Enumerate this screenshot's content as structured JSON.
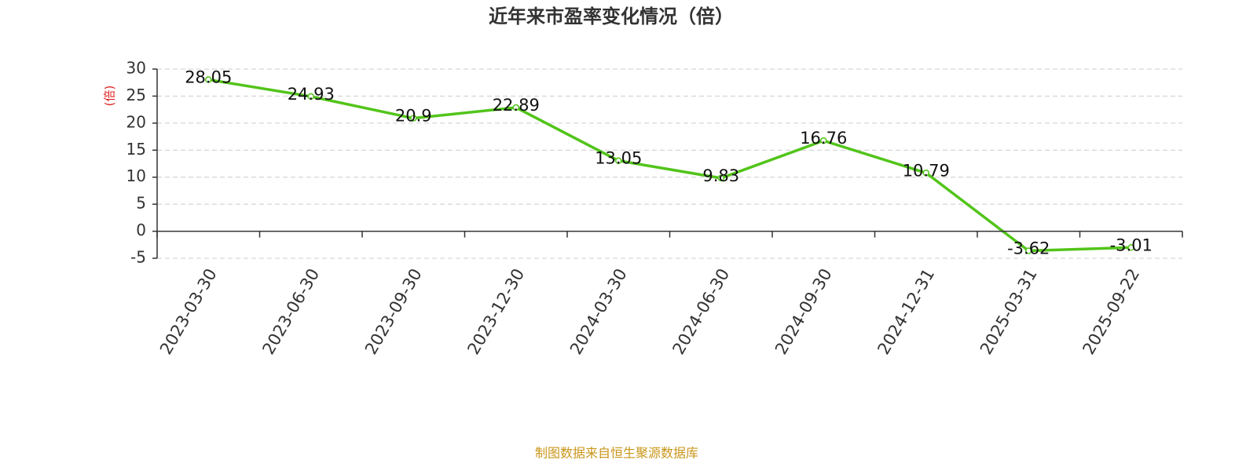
{
  "chart_data": {
    "type": "line",
    "title": "近年来市盈率变化情况（倍）",
    "y_label": "(倍)",
    "source": "制图数据来自恒生聚源数据库",
    "categories": [
      "2023-03-30",
      "2023-06-30",
      "2023-09-30",
      "2023-12-30",
      "2024-03-30",
      "2024-06-30",
      "2024-09-30",
      "2024-12-31",
      "2025-03-31",
      "2025-09-22"
    ],
    "values": [
      28.05,
      24.93,
      20.9,
      22.89,
      13.05,
      9.83,
      16.76,
      10.79,
      -3.62,
      -3.01
    ],
    "color": "#52c41a",
    "ylim": [
      -5,
      30
    ],
    "yticks": [
      -5,
      0,
      5,
      10,
      15,
      20,
      25,
      30
    ],
    "grid": true
  }
}
